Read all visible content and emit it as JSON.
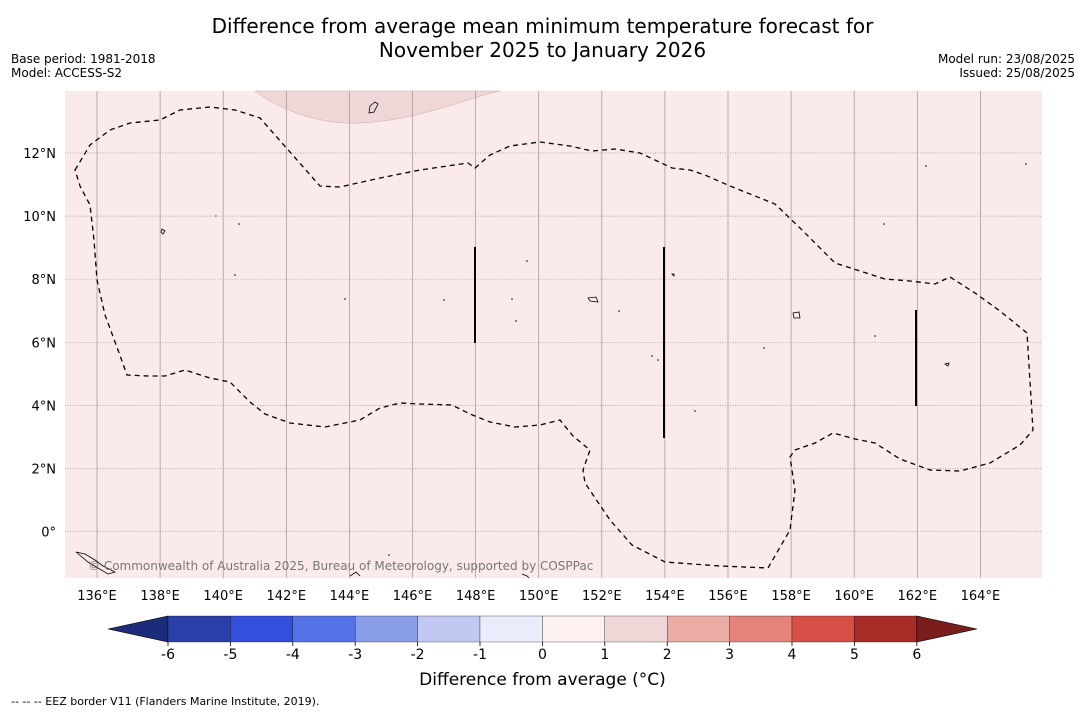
{
  "title_line1": "Difference from average mean minimum temperature forecast for",
  "title_line2": "November 2025 to January 2026",
  "base_period": "Base period: 1981-2018",
  "model": "Model: ACCESS-S2",
  "model_run": "Model run: 23/08/2025",
  "issued": "Issued: 25/08/2025",
  "copyright": "© Commonwealth of Australia 2025, Bureau of Meteorology, supported by COSPPac",
  "colorbar_title": "Difference from average (°C)",
  "footnote": "-- -- -- EEZ border V11 (Flanders Marine Institute, 2019).",
  "x_ticks": [
    "136°E",
    "138°E",
    "140°E",
    "142°E",
    "144°E",
    "146°E",
    "148°E",
    "150°E",
    "152°E",
    "154°E",
    "156°E",
    "158°E",
    "160°E",
    "162°E",
    "164°E"
  ],
  "y_ticks": [
    "12°N",
    "10°N",
    "8°N",
    "6°N",
    "4°N",
    "2°N",
    "0°"
  ],
  "colorbar": {
    "labels": [
      "-6",
      "-5",
      "-4",
      "-3",
      "-2",
      "-1",
      "0",
      "1",
      "2",
      "3",
      "4",
      "5",
      "6"
    ],
    "colors": [
      "#2a3fa8",
      "#3350dd",
      "#5571e6",
      "#8a9de8",
      "#c1c9f2",
      "#e8ecfb",
      "#fdf0f0",
      "#efd7d7",
      "#ebaca6",
      "#e38379",
      "#d64e45",
      "#a82c28"
    ],
    "under_color": "#1c2b7a",
    "over_color": "#7a1d1d"
  },
  "map": {
    "background_color": "#fbeaea",
    "anomaly_patch_color": "#efd7d7"
  }
}
